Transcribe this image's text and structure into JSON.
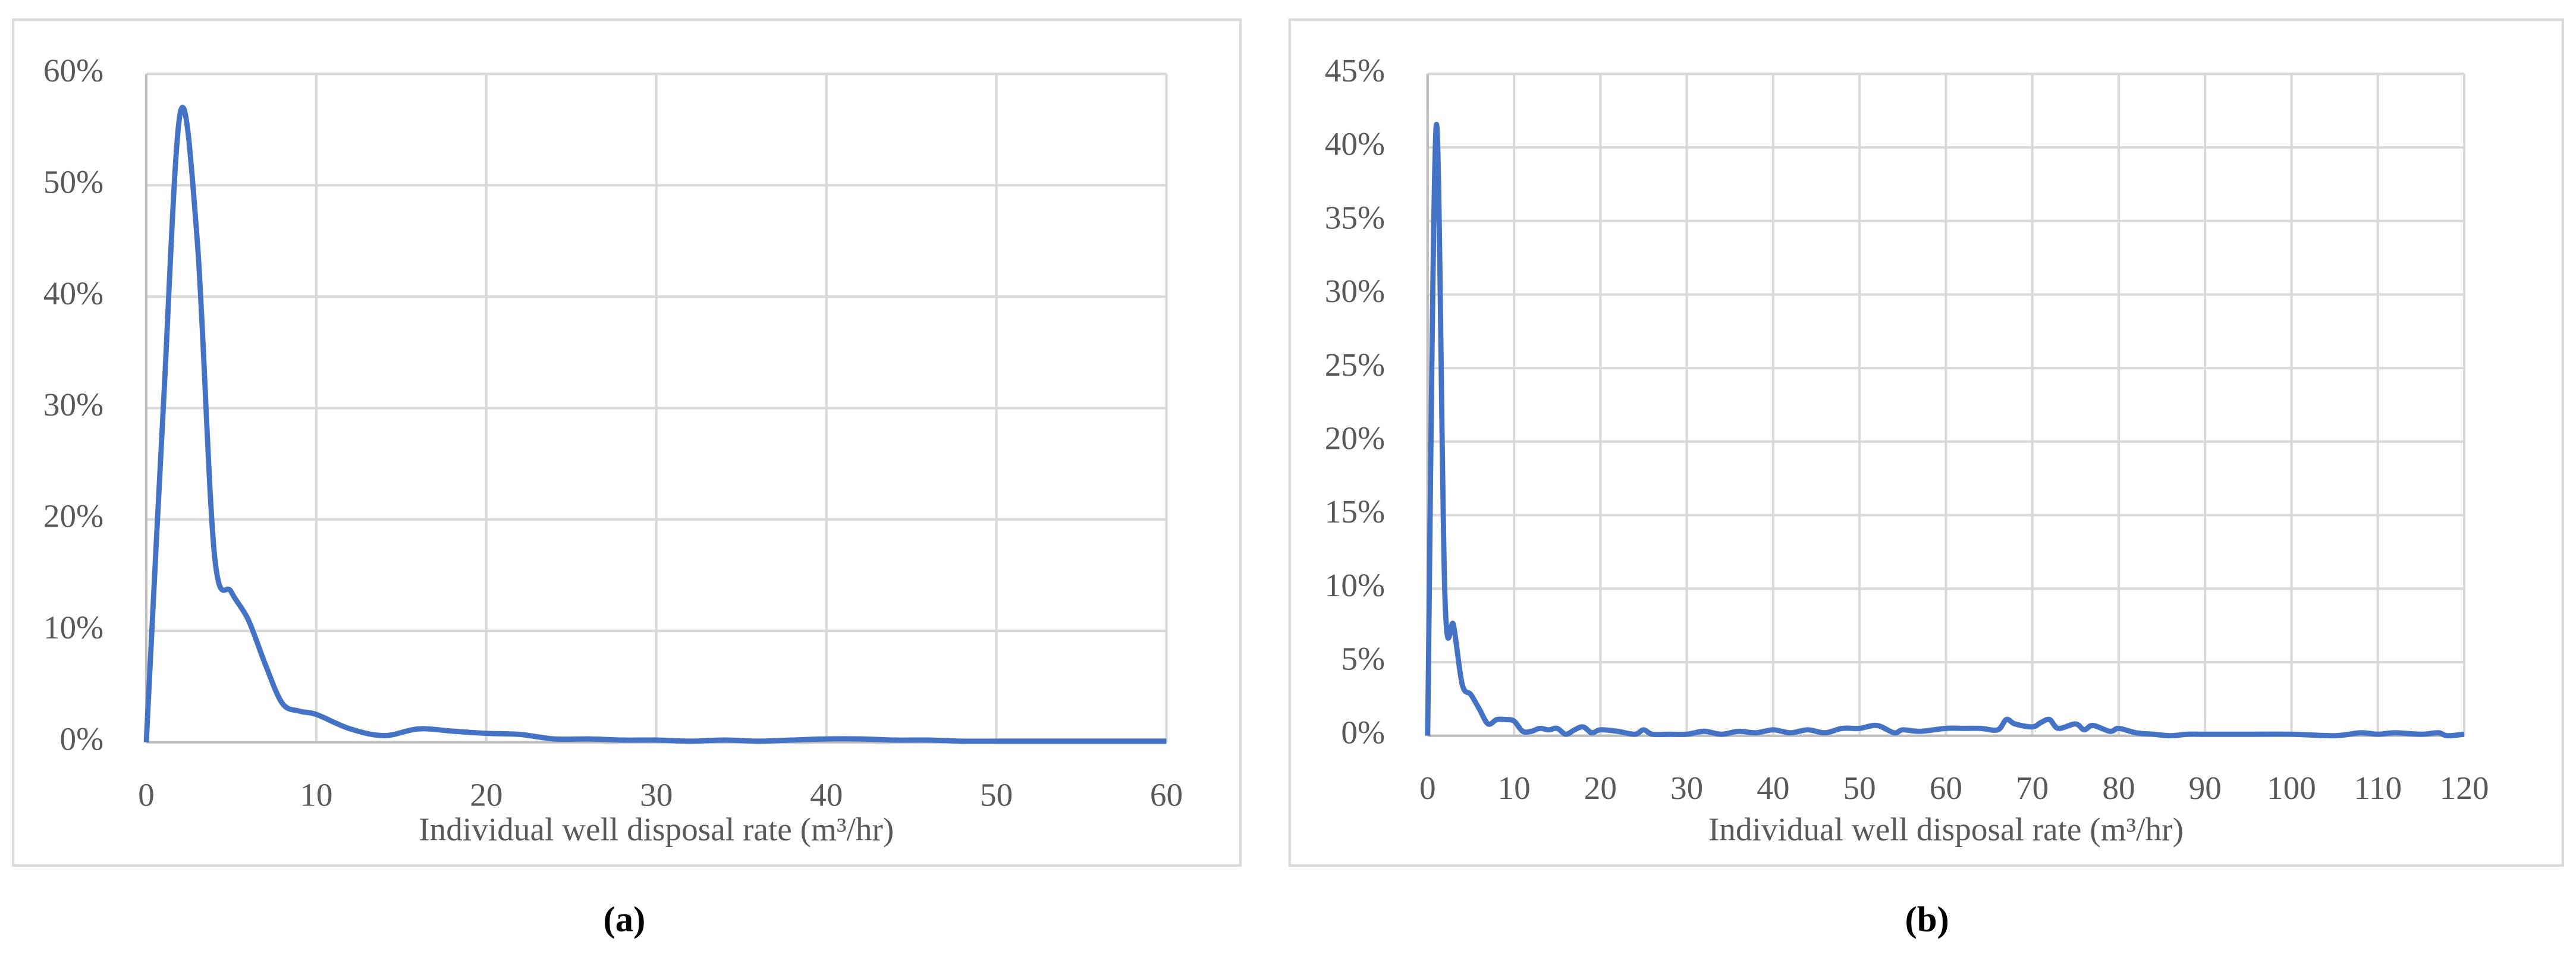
{
  "chart_data": [
    {
      "type": "line",
      "caption": "(a)",
      "x_label": "Individual well disposal rate (m³/hr)",
      "x": [
        0,
        1,
        2,
        3,
        4,
        5,
        6,
        7,
        8,
        9,
        10,
        12,
        14,
        16,
        18,
        20,
        22,
        24,
        26,
        28,
        30,
        32,
        34,
        36,
        38,
        40,
        42,
        44,
        46,
        48,
        50,
        52,
        54,
        56,
        58,
        60
      ],
      "series": [
        {
          "color": "#4472c4",
          "values": [
            0,
            30,
            56.5,
            45,
            17,
            13.5,
            11,
            7,
            3.5,
            2.8,
            2.5,
            1.2,
            0.6,
            1.2,
            1,
            0.8,
            0.7,
            0.3,
            0.3,
            0.2,
            0.2,
            0.1,
            0.2,
            0.1,
            0.2,
            0.3,
            0.3,
            0.2,
            0.2,
            0.1,
            0.1,
            0.1,
            0.1,
            0.1,
            0.1,
            0.1
          ]
        }
      ],
      "xlim": [
        0,
        60
      ],
      "xticks": [
        0,
        10,
        20,
        30,
        40,
        50,
        60
      ],
      "ylim": [
        0,
        60
      ],
      "yticks": [
        {
          "value": 0,
          "label": "0%"
        },
        {
          "value": 10,
          "label": "10%"
        },
        {
          "value": 20,
          "label": "20%"
        },
        {
          "value": 30,
          "label": "30%"
        },
        {
          "value": 40,
          "label": "40%"
        },
        {
          "value": 50,
          "label": "50%"
        },
        {
          "value": 60,
          "label": "60%"
        }
      ],
      "grid": true
    },
    {
      "type": "line",
      "caption": "(b)",
      "x_label": "Individual well disposal rate (m³/hr)",
      "x": [
        0,
        1,
        2,
        3,
        4,
        5,
        6,
        7,
        8,
        9,
        10,
        11,
        12,
        13,
        14,
        15,
        16,
        17,
        18,
        19,
        20,
        22,
        24,
        25,
        26,
        28,
        30,
        32,
        34,
        36,
        38,
        40,
        42,
        44,
        46,
        48,
        50,
        52,
        54,
        55,
        57,
        60,
        62,
        64,
        66,
        67,
        68,
        70,
        71,
        72,
        73,
        75,
        76,
        77,
        79,
        80,
        82,
        84,
        86,
        88,
        90,
        95,
        100,
        105,
        108,
        110,
        112,
        115,
        117,
        118,
        120
      ],
      "series": [
        {
          "color": "#4472c4",
          "values": [
            0,
            41.5,
            9.5,
            7.5,
            3.5,
            2.8,
            1.8,
            0.8,
            1.1,
            1.1,
            1,
            0.3,
            0.3,
            0.5,
            0.4,
            0.5,
            0.1,
            0.4,
            0.6,
            0.2,
            0.4,
            0.3,
            0.1,
            0.4,
            0.1,
            0.1,
            0.1,
            0.3,
            0.1,
            0.3,
            0.2,
            0.4,
            0.2,
            0.4,
            0.2,
            0.5,
            0.5,
            0.7,
            0.2,
            0.4,
            0.3,
            0.5,
            0.5,
            0.5,
            0.4,
            1.1,
            0.8,
            0.6,
            0.9,
            1.1,
            0.5,
            0.8,
            0.4,
            0.7,
            0.3,
            0.5,
            0.2,
            0.1,
            0,
            0.1,
            0.1,
            0.1,
            0.1,
            0,
            0.2,
            0.1,
            0.2,
            0.1,
            0.2,
            0,
            0.1
          ]
        }
      ],
      "xlim": [
        0,
        120
      ],
      "xticks": [
        0,
        10,
        20,
        30,
        40,
        50,
        60,
        70,
        80,
        90,
        100,
        110,
        120
      ],
      "ylim": [
        0,
        45
      ],
      "yticks": [
        {
          "value": 0,
          "label": "0%"
        },
        {
          "value": 5,
          "label": "5%"
        },
        {
          "value": 10,
          "label": "10%"
        },
        {
          "value": 15,
          "label": "15%"
        },
        {
          "value": 20,
          "label": "20%"
        },
        {
          "value": 25,
          "label": "25%"
        },
        {
          "value": 30,
          "label": "30%"
        },
        {
          "value": 35,
          "label": "35%"
        },
        {
          "value": 40,
          "label": "40%"
        },
        {
          "value": 45,
          "label": "45%"
        }
      ],
      "grid": true
    }
  ]
}
